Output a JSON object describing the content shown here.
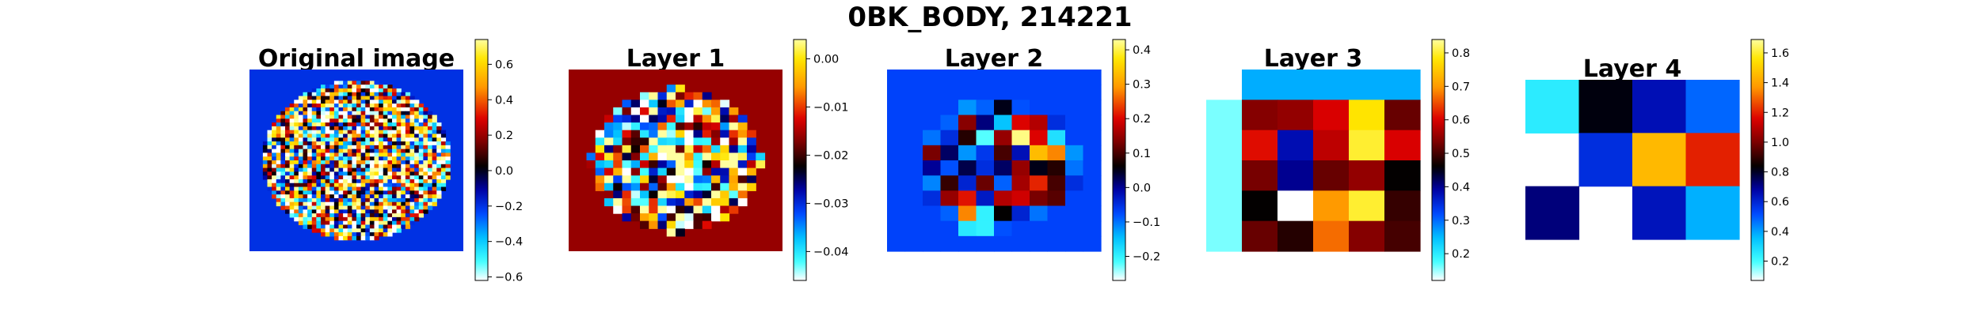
{
  "chart_data": {
    "type": "heatmap",
    "title": "0BK_BODY, 214221",
    "colormap": "flag-like diverging: white - cyan - blue - navy - black - dark red - red - orange - yellow",
    "panels": [
      {
        "title": "Original image",
        "grid": [
          48,
          48
        ],
        "description": "noisy circular feature map inside a circular mask on a navy background",
        "colorbar": {
          "range": [
            -0.62,
            0.74
          ],
          "ticks": [
            {
              "value": 0.6,
              "label": "0.6"
            },
            {
              "value": 0.4,
              "label": "0.4"
            },
            {
              "value": 0.2,
              "label": "0.2"
            },
            {
              "value": 0.0,
              "label": "0.0"
            },
            {
              "value": -0.2,
              "label": "−0.2"
            },
            {
              "value": -0.4,
              "label": "−0.4"
            },
            {
              "value": -0.6,
              "label": "−0.6"
            }
          ]
        }
      },
      {
        "title": "Layer 1",
        "grid": [
          24,
          24
        ],
        "description": "noisy circular feature map on a dark red background",
        "colorbar": {
          "range": [
            -0.046,
            0.004
          ],
          "ticks": [
            {
              "value": 0.0,
              "label": "0.00"
            },
            {
              "value": -0.01,
              "label": "−0.01"
            },
            {
              "value": -0.02,
              "label": "−0.02"
            },
            {
              "value": -0.03,
              "label": "−0.03"
            },
            {
              "value": -0.04,
              "label": "−0.04"
            }
          ]
        }
      },
      {
        "title": "Layer 2",
        "grid": [
          12,
          12
        ],
        "colorbar": {
          "range": [
            -0.27,
            0.43
          ],
          "ticks": [
            {
              "value": 0.4,
              "label": "0.4"
            },
            {
              "value": 0.3,
              "label": "0.3"
            },
            {
              "value": 0.2,
              "label": "0.2"
            },
            {
              "value": 0.1,
              "label": "0.1"
            },
            {
              "value": 0.0,
              "label": "0.0"
            },
            {
              "value": -0.1,
              "label": "−0.1"
            },
            {
              "value": -0.2,
              "label": "−0.2"
            }
          ]
        },
        "values": [
          [
            -0.07,
            -0.07,
            -0.07,
            -0.07,
            -0.07,
            -0.07,
            -0.07,
            -0.07,
            -0.07,
            -0.07,
            -0.07,
            -0.07
          ],
          [
            -0.07,
            -0.07,
            -0.07,
            -0.07,
            -0.07,
            -0.07,
            -0.07,
            -0.07,
            -0.07,
            -0.07,
            -0.07,
            -0.07
          ],
          [
            -0.07,
            -0.07,
            -0.07,
            -0.07,
            -0.12,
            -0.09,
            0.05,
            -0.08,
            -0.07,
            -0.07,
            -0.07,
            -0.07
          ],
          [
            -0.07,
            -0.07,
            -0.07,
            -0.09,
            0.14,
            0.01,
            -0.15,
            0.2,
            0.17,
            -0.05,
            -0.07,
            -0.07
          ],
          [
            -0.07,
            -0.07,
            -0.1,
            -0.05,
            0.08,
            -0.22,
            0.15,
            0.42,
            0.2,
            -0.18,
            -0.07,
            -0.07
          ],
          [
            -0.07,
            -0.07,
            0.13,
            0.02,
            -0.12,
            -0.06,
            0.1,
            -0.02,
            0.33,
            0.28,
            -0.12,
            -0.07
          ],
          [
            -0.07,
            -0.07,
            0.0,
            -0.08,
            0.03,
            -0.05,
            0.02,
            0.15,
            0.05,
            0.08,
            -0.1,
            -0.07
          ],
          [
            -0.07,
            -0.07,
            -0.11,
            0.09,
            -0.04,
            0.12,
            -0.09,
            0.16,
            0.22,
            0.1,
            -0.05,
            -0.07
          ],
          [
            -0.07,
            -0.07,
            -0.05,
            0.15,
            0.21,
            -0.03,
            0.17,
            0.19,
            0.13,
            0.11,
            -0.07,
            -0.07
          ],
          [
            -0.07,
            -0.07,
            -0.07,
            -0.09,
            0.28,
            -0.2,
            0.06,
            -0.04,
            -0.1,
            -0.07,
            -0.07,
            -0.07
          ],
          [
            -0.07,
            -0.07,
            -0.07,
            -0.07,
            -0.19,
            -0.2,
            -0.08,
            -0.07,
            -0.07,
            -0.07,
            -0.07,
            -0.07
          ],
          [
            -0.07,
            -0.07,
            -0.07,
            -0.07,
            -0.07,
            -0.07,
            -0.07,
            -0.07,
            -0.07,
            -0.07,
            -0.07,
            -0.07
          ]
        ]
      },
      {
        "title": "Layer 3",
        "grid": [
          6,
          6
        ],
        "colorbar": {
          "range": [
            0.12,
            0.84
          ],
          "ticks": [
            {
              "value": 0.8,
              "label": "0.8"
            },
            {
              "value": 0.7,
              "label": "0.7"
            },
            {
              "value": 0.6,
              "label": "0.6"
            },
            {
              "value": 0.5,
              "label": "0.5"
            },
            {
              "value": 0.4,
              "label": "0.4"
            },
            {
              "value": 0.3,
              "label": "0.3"
            },
            {
              "value": 0.2,
              "label": "0.2"
            }
          ]
        },
        "values": [
          [
            null,
            0.26,
            0.26,
            0.26,
            0.26,
            0.26
          ],
          [
            0.16,
            0.54,
            0.55,
            0.6,
            0.78,
            0.52
          ],
          [
            0.16,
            0.61,
            0.38,
            0.58,
            0.8,
            0.6
          ],
          [
            0.16,
            0.53,
            0.4,
            0.52,
            0.55,
            0.46
          ],
          [
            0.16,
            0.46,
            0.12,
            0.7,
            0.8,
            0.49
          ],
          [
            0.16,
            0.52,
            0.48,
            0.67,
            0.54,
            0.5
          ]
        ]
      },
      {
        "title": "Layer 4",
        "grid": [
          3,
          4
        ],
        "colorbar": {
          "range": [
            0.07,
            1.69
          ],
          "ticks": [
            {
              "value": 1.6,
              "label": "1.6"
            },
            {
              "value": 1.4,
              "label": "1.4"
            },
            {
              "value": 1.2,
              "label": "1.2"
            },
            {
              "value": 1.0,
              "label": "1.0"
            },
            {
              "value": 0.8,
              "label": "0.8"
            },
            {
              "value": 0.6,
              "label": "0.6"
            },
            {
              "value": 0.4,
              "label": "0.4"
            },
            {
              "value": 0.2,
              "label": "0.2"
            }
          ]
        },
        "values": [
          [
            0.25,
            0.82,
            0.65,
            0.48
          ],
          [
            null,
            0.58,
            1.45,
            1.2
          ],
          [
            0.72,
            null,
            0.64,
            0.38
          ]
        ]
      }
    ]
  }
}
